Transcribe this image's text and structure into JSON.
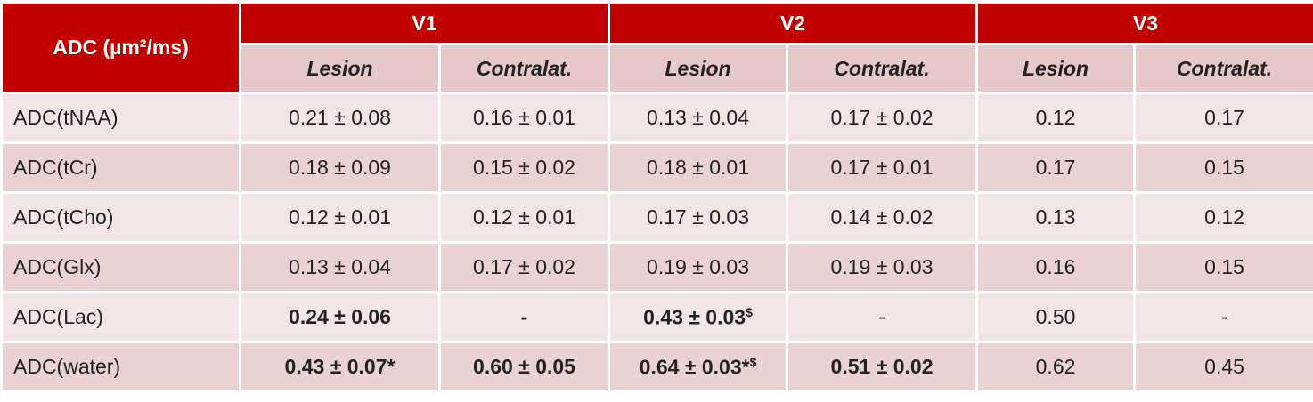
{
  "header": {
    "corner": "ADC (µm²/ms)",
    "groups": [
      "V1",
      "V2",
      "V3"
    ],
    "subheaders": [
      "Lesion",
      "Contralat.",
      "Lesion",
      "Contralat.",
      "Lesion",
      "Contralat."
    ]
  },
  "table": {
    "rows": [
      {
        "label": "ADC(tNAA)",
        "cells": [
          {
            "text": "0.21 ± 0.08"
          },
          {
            "text": "0.16 ± 0.01"
          },
          {
            "text": "0.13 ± 0.04"
          },
          {
            "text": "0.17 ± 0.02"
          },
          {
            "text": "0.12"
          },
          {
            "text": "0.17"
          }
        ]
      },
      {
        "label": "ADC(tCr)",
        "cells": [
          {
            "text": "0.18 ± 0.09"
          },
          {
            "text": "0.15 ± 0.02"
          },
          {
            "text": "0.18 ± 0.01"
          },
          {
            "text": "0.17 ± 0.01"
          },
          {
            "text": "0.17"
          },
          {
            "text": "0.15"
          }
        ]
      },
      {
        "label": "ADC(tCho)",
        "cells": [
          {
            "text": "0.12 ± 0.01"
          },
          {
            "text": "0.12 ± 0.01"
          },
          {
            "text": "0.17 ± 0.03"
          },
          {
            "text": "0.14 ± 0.02"
          },
          {
            "text": "0.13"
          },
          {
            "text": "0.12"
          }
        ]
      },
      {
        "label": "ADC(Glx)",
        "cells": [
          {
            "text": "0.13 ± 0.04"
          },
          {
            "text": "0.17 ± 0.02"
          },
          {
            "text": "0.19 ± 0.03"
          },
          {
            "text": "0.19 ± 0.03"
          },
          {
            "text": "0.16"
          },
          {
            "text": "0.15"
          }
        ]
      },
      {
        "label": "ADC(Lac)",
        "cells": [
          {
            "text": "0.24 ± 0.06",
            "bold": true
          },
          {
            "text": "-",
            "bold": true
          },
          {
            "text": "0.43 ± 0.03",
            "sup": "$",
            "bold": true
          },
          {
            "text": "-"
          },
          {
            "text": "0.50"
          },
          {
            "text": "-"
          }
        ]
      },
      {
        "label": "ADC(water)",
        "cells": [
          {
            "text": "0.43 ± 0.07*",
            "bold": true
          },
          {
            "text": "0.60 ± 0.05",
            "bold": true
          },
          {
            "text": "0.64 ± 0.03*",
            "sup": "$",
            "bold": true
          },
          {
            "text": "0.51 ± 0.02",
            "bold": true
          },
          {
            "text": "0.62"
          },
          {
            "text": "0.45"
          }
        ]
      }
    ]
  }
}
